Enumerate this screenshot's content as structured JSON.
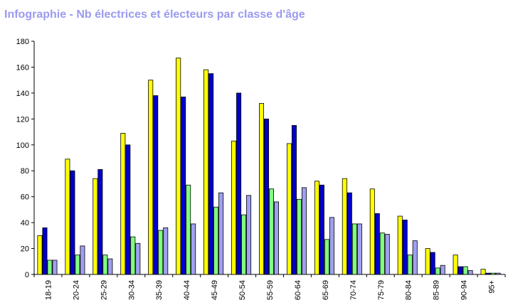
{
  "header": {
    "title": "Infographie - Nb électrices et électeurs par classe d'âge"
  },
  "chart_data": {
    "type": "bar",
    "title": "Infographie - Nb électrices et électeurs par classe d'âge",
    "xlabel": "",
    "ylabel": "",
    "ylim": [
      0,
      180
    ],
    "yticks": [
      0,
      20,
      40,
      60,
      80,
      100,
      120,
      140,
      160,
      180
    ],
    "grid": false,
    "legend": "none",
    "categories": [
      "18-19",
      "20-24",
      "25-29",
      "30-34",
      "35-39",
      "40-44",
      "45-49",
      "50-54",
      "55-59",
      "60-64",
      "65-69",
      "70-74",
      "75-79",
      "80-84",
      "85-89",
      "90-94",
      "95+"
    ],
    "series": [
      {
        "color": "#ffff00",
        "values": [
          30,
          89,
          74,
          109,
          150,
          167,
          158,
          103,
          132,
          101,
          72,
          74,
          66,
          45,
          20,
          15,
          4
        ]
      },
      {
        "color": "#0000cc",
        "values": [
          36,
          80,
          81,
          100,
          138,
          137,
          155,
          140,
          120,
          115,
          69,
          63,
          47,
          42,
          17,
          6,
          1
        ]
      },
      {
        "color": "#80ff80",
        "values": [
          11,
          15,
          15,
          29,
          34,
          69,
          52,
          46,
          66,
          58,
          27,
          39,
          32,
          15,
          5,
          6,
          1
        ]
      },
      {
        "color": "#a0a0f0",
        "values": [
          11,
          22,
          12,
          24,
          36,
          39,
          63,
          61,
          56,
          67,
          44,
          39,
          31,
          26,
          7,
          3,
          1
        ]
      }
    ]
  }
}
